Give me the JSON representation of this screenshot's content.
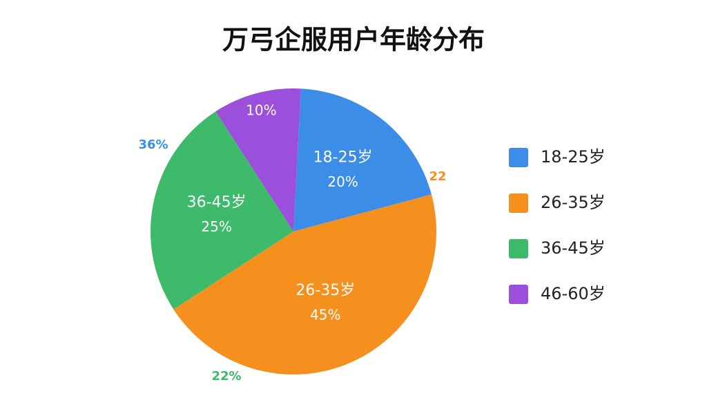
{
  "chart_data": {
    "type": "pie",
    "title": "万弓企服用户年龄分布",
    "categories": [
      "18-25岁",
      "26-35岁",
      "36-45岁",
      "46-60岁"
    ],
    "values": [
      20,
      45,
      25,
      10
    ],
    "value_labels": [
      "20%",
      "45%",
      "25%",
      "10%"
    ],
    "colors": [
      "#3b8de8",
      "#f5901e",
      "#3dbb6a",
      "#9b4fdb"
    ],
    "legend": "right",
    "annotations": [
      {
        "text": "36%",
        "color": "#3b8de8"
      },
      {
        "text": "22",
        "color": "#f5901e"
      },
      {
        "text": "22%",
        "color": "#3dbb6a"
      }
    ]
  }
}
